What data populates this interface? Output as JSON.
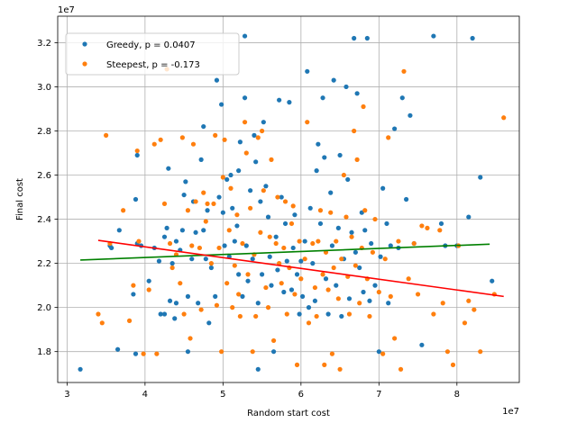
{
  "chart_data": {
    "type": "scatter",
    "xlabel": "Random start cost",
    "ylabel": "Final cost",
    "x_scale_label": "1e7",
    "y_scale_label": "1e7",
    "xlim": [
      2.88,
      8.8
    ],
    "ylim": [
      1.66,
      3.32
    ],
    "xticks": [
      3,
      4,
      5,
      6,
      7,
      8
    ],
    "yticks": [
      1.8,
      2.0,
      2.2,
      2.4,
      2.6,
      2.8,
      3.0,
      3.2
    ],
    "grid": true,
    "legend_position": "upper-left",
    "series": [
      {
        "name": "Greedy, p = 0.0407",
        "color": "#1f77b4",
        "trend": [
          [
            3.17,
            2.215
          ],
          [
            8.42,
            2.287
          ]
        ],
        "trend_color": "#008000",
        "points": [
          [
            3.17,
            1.72
          ],
          [
            3.55,
            2.28
          ],
          [
            3.57,
            2.27
          ],
          [
            3.65,
            1.81
          ],
          [
            3.67,
            2.35
          ],
          [
            3.85,
            2.06
          ],
          [
            3.88,
            1.79
          ],
          [
            3.88,
            2.49
          ],
          [
            3.9,
            2.69
          ],
          [
            3.9,
            2.29
          ],
          [
            3.95,
            2.28
          ],
          [
            4.05,
            2.12
          ],
          [
            4.12,
            2.27
          ],
          [
            4.18,
            2.21
          ],
          [
            4.2,
            1.97
          ],
          [
            4.25,
            2.32
          ],
          [
            4.25,
            1.97
          ],
          [
            4.28,
            2.36
          ],
          [
            4.3,
            2.63
          ],
          [
            4.32,
            2.03
          ],
          [
            4.35,
            2.2
          ],
          [
            4.38,
            1.95
          ],
          [
            4.4,
            2.02
          ],
          [
            4.4,
            2.3
          ],
          [
            4.45,
            2.26
          ],
          [
            4.48,
            2.35
          ],
          [
            4.5,
            2.51
          ],
          [
            4.52,
            2.57
          ],
          [
            4.55,
            2.05
          ],
          [
            4.55,
            1.8
          ],
          [
            4.6,
            2.22
          ],
          [
            4.62,
            2.48
          ],
          [
            4.65,
            2.34
          ],
          [
            4.68,
            2.02
          ],
          [
            4.72,
            2.67
          ],
          [
            4.75,
            2.35
          ],
          [
            4.75,
            2.82
          ],
          [
            4.78,
            2.22
          ],
          [
            4.8,
            2.44
          ],
          [
            4.82,
            1.93
          ],
          [
            4.85,
            2.18
          ],
          [
            4.9,
            2.05
          ],
          [
            4.92,
            3.03
          ],
          [
            4.95,
            2.5
          ],
          [
            4.98,
            2.92
          ],
          [
            5.0,
            2.43
          ],
          [
            5.02,
            2.28
          ],
          [
            5.05,
            2.58
          ],
          [
            5.08,
            2.23
          ],
          [
            5.1,
            2.6
          ],
          [
            5.12,
            2.45
          ],
          [
            5.15,
            2.3
          ],
          [
            5.18,
            2.37
          ],
          [
            5.2,
            2.62
          ],
          [
            5.2,
            2.15
          ],
          [
            5.22,
            2.75
          ],
          [
            5.25,
            2.05
          ],
          [
            5.28,
            3.23
          ],
          [
            5.28,
            2.95
          ],
          [
            5.3,
            2.28
          ],
          [
            5.32,
            2.12
          ],
          [
            5.35,
            2.53
          ],
          [
            5.38,
            2.22
          ],
          [
            5.4,
            2.78
          ],
          [
            5.42,
            2.66
          ],
          [
            5.45,
            2.02
          ],
          [
            5.45,
            1.72
          ],
          [
            5.48,
            2.48
          ],
          [
            5.5,
            2.15
          ],
          [
            5.52,
            2.84
          ],
          [
            5.55,
            2.55
          ],
          [
            5.58,
            2.41
          ],
          [
            5.6,
            2.23
          ],
          [
            5.62,
            2.1
          ],
          [
            5.65,
            1.8
          ],
          [
            5.68,
            2.32
          ],
          [
            5.7,
            2.17
          ],
          [
            5.72,
            2.94
          ],
          [
            5.75,
            2.5
          ],
          [
            5.78,
            2.07
          ],
          [
            5.8,
            2.38
          ],
          [
            5.82,
            2.21
          ],
          [
            5.85,
            2.93
          ],
          [
            5.88,
            2.08
          ],
          [
            5.9,
            2.27
          ],
          [
            5.92,
            2.42
          ],
          [
            5.95,
            2.15
          ],
          [
            5.98,
            1.97
          ],
          [
            6.0,
            2.21
          ],
          [
            6.02,
            2.05
          ],
          [
            6.05,
            2.3
          ],
          [
            6.08,
            3.07
          ],
          [
            6.1,
            2.0
          ],
          [
            6.12,
            2.45
          ],
          [
            6.15,
            2.2
          ],
          [
            6.18,
            2.03
          ],
          [
            6.2,
            2.62
          ],
          [
            6.22,
            2.74
          ],
          [
            6.25,
            2.38
          ],
          [
            6.28,
            2.95
          ],
          [
            6.3,
            2.68
          ],
          [
            6.32,
            2.13
          ],
          [
            6.35,
            1.97
          ],
          [
            6.38,
            2.52
          ],
          [
            6.4,
            2.28
          ],
          [
            6.42,
            3.03
          ],
          [
            6.45,
            2.1
          ],
          [
            6.48,
            2.36
          ],
          [
            6.5,
            2.69
          ],
          [
            6.52,
            1.96
          ],
          [
            6.55,
            2.22
          ],
          [
            6.58,
            3.0
          ],
          [
            6.6,
            2.58
          ],
          [
            6.62,
            2.04
          ],
          [
            6.65,
            2.34
          ],
          [
            6.68,
            3.22
          ],
          [
            6.7,
            2.25
          ],
          [
            6.72,
            2.97
          ],
          [
            6.75,
            2.18
          ],
          [
            6.78,
            2.43
          ],
          [
            6.8,
            2.07
          ],
          [
            6.82,
            2.35
          ],
          [
            6.85,
            3.22
          ],
          [
            6.88,
            2.03
          ],
          [
            6.9,
            2.29
          ],
          [
            6.95,
            2.1
          ],
          [
            7.0,
            1.8
          ],
          [
            7.02,
            2.23
          ],
          [
            7.05,
            2.54
          ],
          [
            7.1,
            2.38
          ],
          [
            7.12,
            2.02
          ],
          [
            7.15,
            2.28
          ],
          [
            7.2,
            2.81
          ],
          [
            7.25,
            2.27
          ],
          [
            7.3,
            2.95
          ],
          [
            7.35,
            2.49
          ],
          [
            7.4,
            2.87
          ],
          [
            7.45,
            2.29
          ],
          [
            7.55,
            1.83
          ],
          [
            7.7,
            3.23
          ],
          [
            7.8,
            2.38
          ],
          [
            7.85,
            2.28
          ],
          [
            8.0,
            2.28
          ],
          [
            8.15,
            2.41
          ],
          [
            8.2,
            3.22
          ],
          [
            8.3,
            2.59
          ],
          [
            8.45,
            2.12
          ]
        ]
      },
      {
        "name": "Steepest, p = -0.173",
        "color": "#ff7f0e",
        "trend": [
          [
            3.4,
            2.304
          ],
          [
            8.6,
            2.05
          ]
        ],
        "trend_color": "#ff0000",
        "points": [
          [
            3.4,
            1.97
          ],
          [
            3.45,
            1.93
          ],
          [
            3.5,
            2.78
          ],
          [
            3.55,
            2.29
          ],
          [
            3.72,
            2.44
          ],
          [
            3.8,
            1.94
          ],
          [
            3.85,
            2.1
          ],
          [
            3.9,
            2.71
          ],
          [
            3.92,
            2.3
          ],
          [
            3.98,
            1.79
          ],
          [
            4.05,
            2.08
          ],
          [
            4.12,
            2.74
          ],
          [
            4.15,
            1.79
          ],
          [
            4.2,
            2.76
          ],
          [
            4.25,
            2.47
          ],
          [
            4.28,
            3.08
          ],
          [
            4.32,
            2.29
          ],
          [
            4.35,
            2.18
          ],
          [
            4.4,
            2.24
          ],
          [
            4.45,
            2.11
          ],
          [
            4.48,
            2.77
          ],
          [
            4.5,
            1.97
          ],
          [
            4.55,
            2.44
          ],
          [
            4.58,
            1.86
          ],
          [
            4.6,
            2.28
          ],
          [
            4.62,
            2.74
          ],
          [
            4.65,
            2.48
          ],
          [
            4.7,
            2.27
          ],
          [
            4.72,
            1.99
          ],
          [
            4.75,
            2.52
          ],
          [
            4.78,
            2.39
          ],
          [
            4.8,
            2.47
          ],
          [
            4.85,
            2.2
          ],
          [
            4.88,
            2.47
          ],
          [
            4.9,
            2.78
          ],
          [
            4.92,
            2.01
          ],
          [
            4.95,
            2.27
          ],
          [
            4.98,
            1.8
          ],
          [
            5.0,
            2.59
          ],
          [
            5.02,
            2.76
          ],
          [
            5.05,
            2.11
          ],
          [
            5.08,
            2.35
          ],
          [
            5.1,
            2.54
          ],
          [
            5.12,
            2.0
          ],
          [
            5.15,
            2.19
          ],
          [
            5.18,
            2.42
          ],
          [
            5.2,
            2.06
          ],
          [
            5.22,
            1.96
          ],
          [
            5.25,
            2.29
          ],
          [
            5.28,
            2.84
          ],
          [
            5.3,
            2.7
          ],
          [
            5.32,
            2.15
          ],
          [
            5.35,
            2.45
          ],
          [
            5.38,
            1.8
          ],
          [
            5.4,
            2.24
          ],
          [
            5.42,
            1.96
          ],
          [
            5.45,
            2.77
          ],
          [
            5.48,
            2.34
          ],
          [
            5.5,
            2.8
          ],
          [
            5.52,
            2.53
          ],
          [
            5.55,
            2.09
          ],
          [
            5.58,
            2.0
          ],
          [
            5.6,
            2.32
          ],
          [
            5.62,
            2.67
          ],
          [
            5.65,
            1.85
          ],
          [
            5.68,
            2.29
          ],
          [
            5.7,
            2.5
          ],
          [
            5.72,
            2.2
          ],
          [
            5.75,
            2.11
          ],
          [
            5.78,
            2.27
          ],
          [
            5.8,
            2.48
          ],
          [
            5.82,
            1.97
          ],
          [
            5.85,
            2.18
          ],
          [
            5.88,
            2.38
          ],
          [
            5.9,
            2.46
          ],
          [
            5.92,
            2.06
          ],
          [
            5.95,
            1.74
          ],
          [
            5.98,
            2.3
          ],
          [
            6.0,
            2.13
          ],
          [
            6.05,
            2.22
          ],
          [
            6.08,
            2.84
          ],
          [
            6.1,
            1.93
          ],
          [
            6.15,
            2.29
          ],
          [
            6.18,
            2.09
          ],
          [
            6.2,
            1.96
          ],
          [
            6.22,
            2.3
          ],
          [
            6.25,
            2.44
          ],
          [
            6.28,
            2.15
          ],
          [
            6.3,
            1.74
          ],
          [
            6.32,
            2.25
          ],
          [
            6.35,
            2.08
          ],
          [
            6.38,
            2.43
          ],
          [
            6.4,
            1.79
          ],
          [
            6.42,
            2.18
          ],
          [
            6.45,
            2.3
          ],
          [
            6.48,
            2.04
          ],
          [
            6.5,
            1.72
          ],
          [
            6.52,
            2.22
          ],
          [
            6.55,
            2.6
          ],
          [
            6.58,
            2.41
          ],
          [
            6.6,
            2.14
          ],
          [
            6.62,
            1.97
          ],
          [
            6.65,
            2.32
          ],
          [
            6.68,
            2.8
          ],
          [
            6.7,
            2.19
          ],
          [
            6.72,
            2.67
          ],
          [
            6.75,
            2.02
          ],
          [
            6.78,
            2.27
          ],
          [
            6.8,
            2.91
          ],
          [
            6.82,
            2.44
          ],
          [
            6.85,
            2.13
          ],
          [
            6.88,
            1.96
          ],
          [
            6.92,
            2.25
          ],
          [
            6.95,
            2.4
          ],
          [
            7.0,
            2.07
          ],
          [
            7.05,
            1.79
          ],
          [
            7.08,
            2.22
          ],
          [
            7.12,
            2.77
          ],
          [
            7.15,
            2.05
          ],
          [
            7.2,
            1.86
          ],
          [
            7.25,
            2.3
          ],
          [
            7.28,
            1.72
          ],
          [
            7.32,
            3.07
          ],
          [
            7.38,
            2.13
          ],
          [
            7.45,
            2.29
          ],
          [
            7.5,
            2.06
          ],
          [
            7.55,
            2.37
          ],
          [
            7.62,
            2.36
          ],
          [
            7.7,
            1.97
          ],
          [
            7.78,
            2.35
          ],
          [
            7.82,
            2.02
          ],
          [
            7.88,
            1.8
          ],
          [
            7.95,
            1.74
          ],
          [
            8.02,
            2.28
          ],
          [
            8.1,
            1.93
          ],
          [
            8.15,
            2.03
          ],
          [
            8.22,
            1.99
          ],
          [
            8.3,
            1.8
          ],
          [
            8.48,
            2.06
          ],
          [
            8.6,
            2.86
          ]
        ]
      }
    ]
  }
}
